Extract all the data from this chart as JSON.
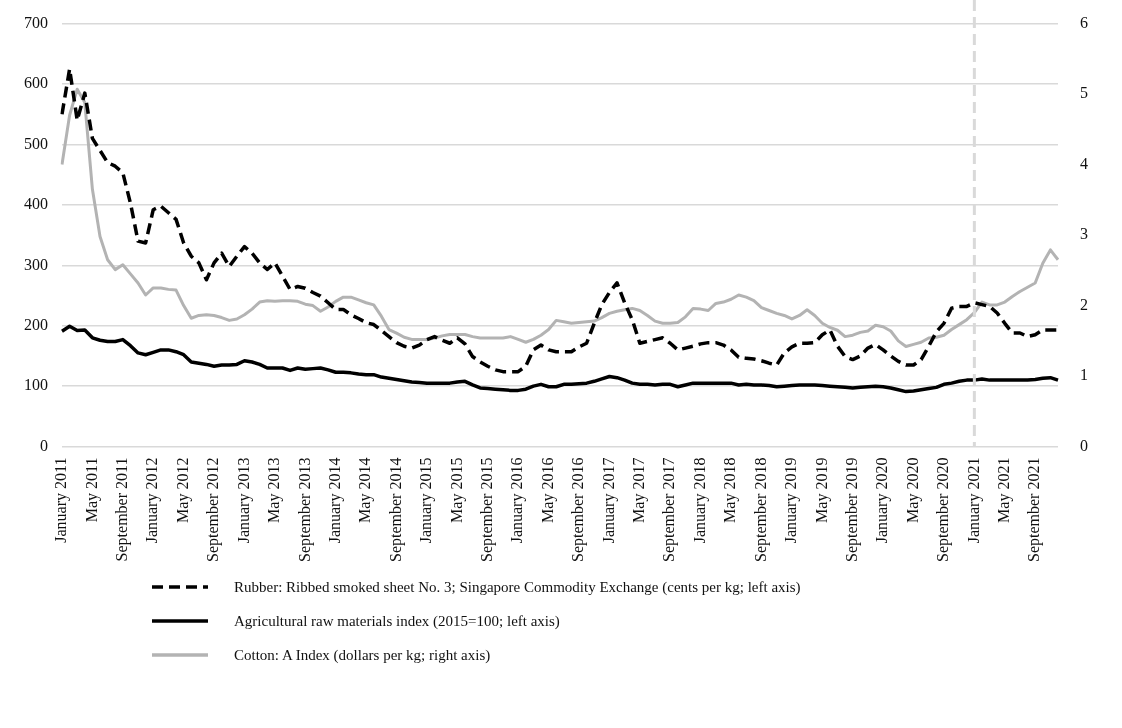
{
  "chart_data": {
    "type": "line",
    "categories": [
      "January 2011",
      null,
      null,
      null,
      "May 2011",
      null,
      null,
      null,
      "September 2011",
      null,
      null,
      null,
      "January 2012",
      null,
      null,
      null,
      "May 2012",
      null,
      null,
      null,
      "September 2012",
      null,
      null,
      null,
      "January 2013",
      null,
      null,
      null,
      "May 2013",
      null,
      null,
      null,
      "September 2013",
      null,
      null,
      null,
      "January 2014",
      null,
      null,
      null,
      "May 2014",
      null,
      null,
      null,
      "September 2014",
      null,
      null,
      null,
      "January 2015",
      null,
      null,
      null,
      "May 2015",
      null,
      null,
      null,
      "September 2015",
      null,
      null,
      null,
      "January 2016",
      null,
      null,
      null,
      "May 2016",
      null,
      null,
      null,
      "September 2016",
      null,
      null,
      null,
      "January 2017",
      null,
      null,
      null,
      "May 2017",
      null,
      null,
      null,
      "September 2017",
      null,
      null,
      null,
      "January 2018",
      null,
      null,
      null,
      "May 2018",
      null,
      null,
      null,
      "September 2018",
      null,
      null,
      null,
      "January 2019",
      null,
      null,
      null,
      "May 2019",
      null,
      null,
      null,
      "September 2019",
      null,
      null,
      null,
      "January 2020",
      null,
      null,
      null,
      "May 2020",
      null,
      null,
      null,
      "September 2020",
      null,
      null,
      null,
      "January 2021",
      null,
      null,
      null,
      "May 2021",
      null,
      null,
      null,
      "September 2021",
      null,
      null,
      null
    ],
    "series": [
      {
        "name": "Rubber: Ribbed smoked sheet No. 3; Singapore Commodity Exchange (cents per kg; left axis)",
        "color": "#000000",
        "axis": "y",
        "line_style": "dashed",
        "values": [
          550,
          625,
          540,
          585,
          510,
          490,
          470,
          464,
          453,
          403,
          340,
          337,
          392,
          398,
          387,
          376,
          337,
          315,
          304,
          276,
          304,
          320,
          298,
          315,
          331,
          320,
          304,
          293,
          304,
          282,
          260,
          265,
          262,
          255,
          249,
          238,
          227,
          227,
          218,
          212,
          205,
          202,
          192,
          182,
          172,
          166,
          163,
          168,
          177,
          182,
          176,
          171,
          180,
          170,
          149,
          140,
          133,
          127,
          124,
          124,
          124,
          133,
          160,
          168,
          160,
          157,
          157,
          157,
          165,
          171,
          204,
          235,
          255,
          271,
          238,
          210,
          171,
          174,
          177,
          180,
          171,
          160,
          163,
          166,
          170,
          172,
          172,
          168,
          160,
          148,
          146,
          145,
          142,
          138,
          135,
          155,
          165,
          171,
          171,
          172,
          185,
          193,
          166,
          149,
          144,
          150,
          163,
          169,
          160,
          150,
          141,
          135,
          135,
          144,
          166,
          190,
          204,
          229,
          232,
          232,
          238,
          235,
          232,
          221,
          204,
          188,
          188,
          182,
          185,
          193,
          193,
          193
        ]
      },
      {
        "name": "Agricultural raw materials index (2015=100; left axis)",
        "color": "#000000",
        "axis": "y",
        "line_style": "solid",
        "values": [
          191,
          199,
          192,
          193,
          180,
          176,
          174,
          174,
          177,
          167,
          155,
          152,
          156,
          160,
          160,
          157,
          152,
          140,
          138,
          136,
          133,
          135,
          135,
          136,
          142,
          140,
          136,
          130,
          130,
          130,
          126,
          130,
          128,
          129,
          130,
          127,
          123,
          123,
          122,
          120,
          119,
          119,
          115,
          113,
          111,
          109,
          107,
          106,
          105,
          105,
          105,
          105,
          107,
          108,
          102,
          97,
          96,
          95,
          94,
          93,
          93,
          95,
          100,
          103,
          99,
          99,
          103,
          103,
          104,
          105,
          108,
          112,
          116,
          114,
          110,
          105,
          103,
          103,
          102,
          103,
          103,
          99,
          102,
          105,
          105,
          105,
          105,
          105,
          105,
          102,
          103,
          102,
          102,
          101,
          99,
          100,
          101,
          102,
          102,
          102,
          101,
          100,
          99,
          98,
          97,
          98,
          99,
          100,
          99,
          97,
          94,
          91,
          92,
          94,
          96,
          98,
          103,
          105,
          108,
          110,
          110,
          112,
          110,
          110,
          110,
          110,
          110,
          110,
          111,
          113,
          114,
          110
        ]
      },
      {
        "name": "Cotton: A Index (dollars per kg; right axis)",
        "color": "#b3b3b3",
        "axis": "y2",
        "line_style": "solid",
        "values": [
          4.0,
          4.7,
          5.07,
          4.88,
          3.65,
          2.98,
          2.65,
          2.51,
          2.58,
          2.45,
          2.32,
          2.15,
          2.25,
          2.25,
          2.23,
          2.22,
          2.0,
          1.82,
          1.86,
          1.87,
          1.86,
          1.83,
          1.79,
          1.81,
          1.87,
          1.95,
          2.05,
          2.07,
          2.06,
          2.07,
          2.07,
          2.06,
          2.02,
          2.0,
          1.92,
          1.98,
          2.06,
          2.12,
          2.12,
          2.08,
          2.04,
          2.01,
          1.85,
          1.66,
          1.61,
          1.55,
          1.52,
          1.52,
          1.52,
          1.54,
          1.57,
          1.59,
          1.59,
          1.59,
          1.56,
          1.54,
          1.54,
          1.54,
          1.54,
          1.56,
          1.52,
          1.48,
          1.52,
          1.58,
          1.66,
          1.79,
          1.77,
          1.75,
          1.76,
          1.77,
          1.78,
          1.83,
          1.89,
          1.92,
          1.94,
          1.96,
          1.93,
          1.86,
          1.78,
          1.75,
          1.75,
          1.76,
          1.84,
          1.96,
          1.95,
          1.93,
          2.03,
          2.05,
          2.09,
          2.15,
          2.12,
          2.07,
          1.97,
          1.93,
          1.89,
          1.86,
          1.81,
          1.86,
          1.94,
          1.86,
          1.75,
          1.69,
          1.65,
          1.56,
          1.58,
          1.62,
          1.64,
          1.72,
          1.7,
          1.64,
          1.5,
          1.42,
          1.45,
          1.48,
          1.54,
          1.55,
          1.58,
          1.66,
          1.73,
          1.8,
          1.9,
          2.05,
          2.01,
          2.01,
          2.05,
          2.13,
          2.2,
          2.26,
          2.32,
          2.6,
          2.79,
          2.65
        ]
      }
    ],
    "ylim": [
      0,
      700
    ],
    "yticks": [
      0,
      100,
      200,
      300,
      400,
      500,
      600,
      700
    ],
    "y2lim": [
      0,
      6
    ],
    "y2ticks": [
      0,
      1,
      2,
      3,
      4,
      5,
      6
    ],
    "ref_lines": [
      {
        "axis": "x",
        "value": "January 2021",
        "color": "#d9d9d9",
        "line_style": "dashed"
      }
    ],
    "grid": "y",
    "legend": "bottom",
    "marker": "none"
  }
}
